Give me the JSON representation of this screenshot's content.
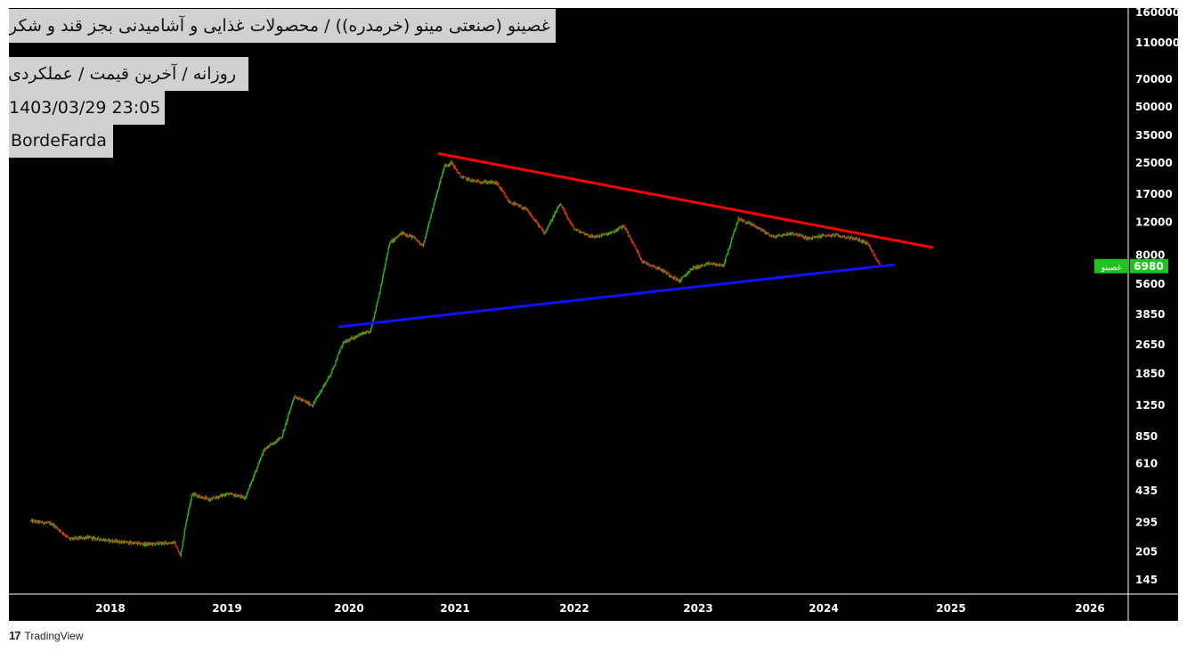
{
  "header": {
    "title": "غصينو (صنعتی مينو (خرمدره)) / محصولات غذايی و آشاميدنی بجز قند و شكر",
    "interval": "روزانه / آخرين قيمت / عملكردی",
    "datetime": "1403/03/29 23:05",
    "author": "BordeFarda"
  },
  "footer": {
    "brand": "TradingView",
    "logo_icon": "tradingview-logo-icon",
    "logo_text": "17"
  },
  "colors": {
    "up": "#19c419",
    "down": "#e8201c",
    "resistance": "#ff0000",
    "support": "#1010ff",
    "badge": "#1ec41e"
  },
  "price_badge": {
    "symbol": "غصينو",
    "value": "6980"
  },
  "chart_data": {
    "type": "candlestick",
    "y_scale": "log",
    "ylim": [
      120,
      175000
    ],
    "y_ticks": [
      "160000",
      "110000",
      "70000",
      "50000",
      "35000",
      "25000",
      "17000",
      "12000",
      "8000",
      "5600",
      "3850",
      "2650",
      "1850",
      "1250",
      "850",
      "610",
      "435",
      "295",
      "205",
      "145"
    ],
    "x_ticks": [
      "2018",
      "2019",
      "2020",
      "2021",
      "2022",
      "2023",
      "2024",
      "2025",
      "2026"
    ],
    "xlim": [
      2017.32,
      2026.5
    ],
    "price_path": [
      [
        2017.32,
        300
      ],
      [
        2017.5,
        290
      ],
      [
        2017.65,
        240
      ],
      [
        2017.8,
        245
      ],
      [
        2018.0,
        235
      ],
      [
        2018.3,
        225
      ],
      [
        2018.55,
        230
      ],
      [
        2018.6,
        195
      ],
      [
        2018.65,
        300
      ],
      [
        2018.7,
        420
      ],
      [
        2018.85,
        390
      ],
      [
        2019.0,
        420
      ],
      [
        2019.15,
        400
      ],
      [
        2019.3,
        720
      ],
      [
        2019.45,
        850
      ],
      [
        2019.55,
        1400
      ],
      [
        2019.7,
        1250
      ],
      [
        2019.85,
        1850
      ],
      [
        2019.95,
        2700
      ],
      [
        2020.1,
        3000
      ],
      [
        2020.2,
        3100
      ],
      [
        2020.3,
        5400
      ],
      [
        2020.38,
        9200
      ],
      [
        2020.5,
        10500
      ],
      [
        2020.6,
        10000
      ],
      [
        2020.7,
        9000
      ],
      [
        2020.8,
        15000
      ],
      [
        2020.9,
        24000
      ],
      [
        2020.97,
        25000
      ],
      [
        2021.05,
        21000
      ],
      [
        2021.15,
        20000
      ],
      [
        2021.35,
        19500
      ],
      [
        2021.45,
        15500
      ],
      [
        2021.6,
        14000
      ],
      [
        2021.75,
        10500
      ],
      [
        2021.88,
        15000
      ],
      [
        2022.0,
        11000
      ],
      [
        2022.15,
        10000
      ],
      [
        2022.3,
        10500
      ],
      [
        2022.4,
        11500
      ],
      [
        2022.55,
        7400
      ],
      [
        2022.7,
        6700
      ],
      [
        2022.85,
        5800
      ],
      [
        2022.95,
        6800
      ],
      [
        2023.1,
        7200
      ],
      [
        2023.2,
        7000
      ],
      [
        2023.32,
        12500
      ],
      [
        2023.45,
        11500
      ],
      [
        2023.6,
        10000
      ],
      [
        2023.75,
        10500
      ],
      [
        2023.88,
        9800
      ],
      [
        2024.0,
        10200
      ],
      [
        2024.1,
        10200
      ],
      [
        2024.25,
        9800
      ],
      [
        2024.35,
        9200
      ],
      [
        2024.42,
        7400
      ],
      [
        2024.46,
        6980
      ]
    ],
    "trendlines": [
      {
        "name": "resistance",
        "from": [
          2020.85,
          28000
        ],
        "to": [
          2024.85,
          8800
        ],
        "color": "#ff0000"
      },
      {
        "name": "support",
        "from": [
          2019.92,
          3300
        ],
        "to": [
          2024.55,
          7100
        ],
        "color": "#1010ff"
      }
    ],
    "last_price": 6980
  }
}
